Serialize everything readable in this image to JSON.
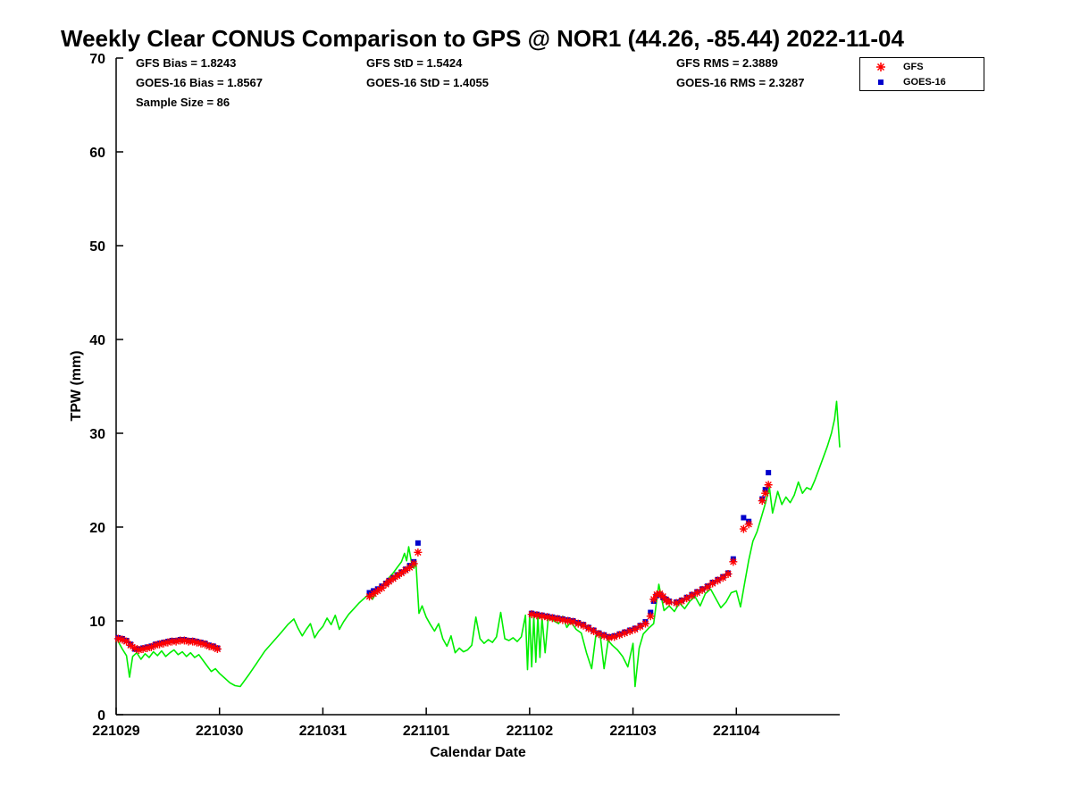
{
  "title": "Weekly Clear CONUS Comparison to GPS @ NOR1 (44.26, -85.44) 2022-11-04",
  "stats": {
    "col1": [
      "GFS Bias = 1.8243",
      "GOES-16 Bias = 1.8567",
      "Sample Size = 86"
    ],
    "col2": [
      "GFS StD = 1.5424",
      "GOES-16 StD = 1.4055"
    ],
    "col3": [
      "GFS RMS = 2.3889",
      "GOES-16 RMS = 2.3287"
    ]
  },
  "legend": {
    "items": [
      {
        "label": "GFS",
        "marker": "asterisk",
        "color": "#ff0000"
      },
      {
        "label": "GOES-16",
        "marker": "square",
        "color": "#0000cc"
      }
    ]
  },
  "chart_data": {
    "type": "line",
    "title": "Weekly Clear CONUS Comparison to GPS @ NOR1 (44.26, -85.44) 2022-11-04",
    "xlabel": "Calendar Date",
    "ylabel": "TPW (mm)",
    "xlim": [
      0,
      7
    ],
    "ylim": [
      0,
      70
    ],
    "grid": false,
    "legend_position": "top-right",
    "xticks": {
      "values": [
        0,
        1,
        2,
        3,
        4,
        5,
        6
      ],
      "labels": [
        "221029",
        "221030",
        "221031",
        "221101",
        "221102",
        "221103",
        "221104"
      ]
    },
    "yticks": [
      0,
      10,
      20,
      30,
      40,
      50,
      60,
      70
    ],
    "series": [
      {
        "name": "GPS",
        "type": "line",
        "color": "#00ee00",
        "x": [
          0.0,
          0.03,
          0.06,
          0.1,
          0.13,
          0.16,
          0.2,
          0.24,
          0.28,
          0.32,
          0.36,
          0.4,
          0.44,
          0.48,
          0.52,
          0.56,
          0.6,
          0.64,
          0.68,
          0.72,
          0.76,
          0.8,
          0.84,
          0.88,
          0.92,
          0.96,
          1.0,
          1.05,
          1.1,
          1.15,
          1.2,
          1.28,
          1.36,
          1.44,
          1.52,
          1.6,
          1.66,
          1.72,
          1.76,
          1.8,
          1.84,
          1.88,
          1.92,
          1.96,
          2.0,
          2.04,
          2.08,
          2.12,
          2.16,
          2.2,
          2.25,
          2.3,
          2.35,
          2.4,
          2.45,
          2.48,
          2.52,
          2.56,
          2.6,
          2.64,
          2.68,
          2.72,
          2.76,
          2.79,
          2.81,
          2.83,
          2.86,
          2.88,
          2.9,
          2.93,
          2.96,
          3.0,
          3.04,
          3.08,
          3.12,
          3.16,
          3.2,
          3.24,
          3.28,
          3.32,
          3.36,
          3.4,
          3.44,
          3.48,
          3.52,
          3.56,
          3.6,
          3.64,
          3.68,
          3.72,
          3.76,
          3.8,
          3.84,
          3.88,
          3.92,
          3.96,
          3.98,
          4.0,
          4.02,
          4.04,
          4.06,
          4.08,
          4.1,
          4.12,
          4.15,
          4.18,
          4.22,
          4.28,
          4.32,
          4.36,
          4.4,
          4.45,
          4.5,
          4.55,
          4.6,
          4.64,
          4.68,
          4.72,
          4.76,
          4.8,
          4.85,
          4.9,
          4.95,
          5.0,
          5.02,
          5.06,
          5.1,
          5.15,
          5.2,
          5.25,
          5.3,
          5.35,
          5.4,
          5.45,
          5.5,
          5.55,
          5.6,
          5.65,
          5.7,
          5.75,
          5.8,
          5.85,
          5.9,
          5.95,
          6.0,
          6.04,
          6.08,
          6.12,
          6.16,
          6.2,
          6.24,
          6.28,
          6.32,
          6.35,
          6.4,
          6.44,
          6.48,
          6.52,
          6.56,
          6.6,
          6.64,
          6.68,
          6.72,
          6.76,
          6.8,
          6.84,
          6.88,
          6.92,
          6.95,
          6.97,
          7.0
        ],
        "y": [
          8.2,
          7.6,
          7.0,
          6.3,
          4.0,
          6.2,
          6.6,
          5.9,
          6.5,
          6.1,
          6.7,
          6.3,
          6.8,
          6.2,
          6.6,
          6.9,
          6.4,
          6.7,
          6.2,
          6.6,
          6.1,
          6.4,
          5.8,
          5.2,
          4.6,
          4.9,
          4.4,
          3.9,
          3.4,
          3.1,
          3.0,
          4.2,
          5.5,
          6.8,
          7.8,
          8.8,
          9.6,
          10.2,
          9.2,
          8.4,
          9.1,
          9.7,
          8.2,
          8.9,
          9.4,
          10.3,
          9.6,
          10.6,
          9.1,
          9.9,
          10.7,
          11.3,
          11.9,
          12.4,
          12.9,
          12.3,
          13.1,
          13.6,
          14.1,
          14.6,
          15.1,
          15.7,
          16.3,
          17.2,
          16.4,
          17.9,
          16.1,
          15.6,
          16.2,
          10.8,
          11.6,
          10.4,
          9.6,
          8.9,
          9.7,
          8.1,
          7.3,
          8.4,
          6.6,
          7.1,
          6.7,
          6.9,
          7.4,
          10.4,
          8.1,
          7.6,
          8.0,
          7.7,
          8.3,
          10.9,
          8.1,
          7.9,
          8.2,
          7.8,
          8.3,
          10.6,
          4.8,
          10.7,
          5.1,
          10.5,
          5.6,
          10.6,
          6.1,
          10.4,
          6.6,
          10.3,
          10.1,
          9.7,
          10.5,
          9.3,
          9.9,
          9.1,
          8.7,
          6.6,
          4.9,
          8.4,
          8.8,
          4.9,
          7.9,
          7.4,
          6.9,
          6.2,
          5.1,
          7.6,
          3.0,
          7.1,
          8.6,
          9.2,
          9.7,
          13.9,
          11.1,
          11.6,
          11.0,
          11.9,
          11.3,
          12.1,
          12.6,
          11.6,
          12.9,
          13.4,
          12.4,
          11.4,
          12.0,
          13.0,
          13.2,
          11.5,
          14.0,
          16.5,
          18.5,
          19.5,
          21.0,
          22.5,
          24.2,
          21.5,
          23.8,
          22.4,
          23.2,
          22.6,
          23.4,
          24.8,
          23.6,
          24.2,
          24.0,
          25.0,
          26.2,
          27.4,
          28.6,
          30.0,
          31.5,
          33.4,
          28.5
        ]
      },
      {
        "name": "GFS",
        "type": "scatter",
        "marker": "asterisk",
        "color": "#ff0000",
        "x": [
          0.02,
          0.06,
          0.1,
          0.14,
          0.18,
          0.22,
          0.26,
          0.3,
          0.34,
          0.38,
          0.42,
          0.46,
          0.5,
          0.54,
          0.58,
          0.62,
          0.66,
          0.7,
          0.74,
          0.78,
          0.82,
          0.86,
          0.9,
          0.94,
          0.98,
          2.45,
          2.49,
          2.53,
          2.57,
          2.61,
          2.64,
          2.68,
          2.72,
          2.76,
          2.8,
          2.84,
          2.88,
          2.92,
          4.02,
          4.07,
          4.12,
          4.17,
          4.22,
          4.27,
          4.32,
          4.37,
          4.42,
          4.47,
          4.52,
          4.57,
          4.62,
          4.67,
          4.72,
          4.77,
          4.82,
          4.87,
          4.92,
          4.97,
          5.02,
          5.07,
          5.12,
          5.17,
          5.2,
          5.23,
          5.26,
          5.29,
          5.32,
          5.35,
          5.42,
          5.47,
          5.52,
          5.57,
          5.62,
          5.67,
          5.72,
          5.77,
          5.82,
          5.87,
          5.92,
          5.97,
          6.07,
          6.12,
          6.25,
          6.28,
          6.31
        ],
        "y": [
          8.1,
          8.0,
          7.8,
          7.4,
          7.1,
          6.9,
          7.0,
          7.1,
          7.2,
          7.4,
          7.5,
          7.6,
          7.7,
          7.8,
          7.8,
          7.9,
          7.9,
          7.8,
          7.8,
          7.7,
          7.6,
          7.5,
          7.3,
          7.2,
          7.0,
          12.6,
          12.9,
          13.2,
          13.5,
          13.9,
          14.2,
          14.5,
          14.8,
          15.1,
          15.4,
          15.7,
          16.1,
          17.3,
          10.7,
          10.6,
          10.5,
          10.4,
          10.3,
          10.2,
          10.1,
          10.0,
          9.9,
          9.7,
          9.5,
          9.2,
          8.9,
          8.6,
          8.4,
          8.2,
          8.3,
          8.5,
          8.7,
          8.9,
          9.1,
          9.4,
          9.7,
          10.5,
          12.3,
          12.8,
          12.9,
          12.6,
          12.2,
          12.0,
          11.9,
          12.1,
          12.4,
          12.7,
          13.0,
          13.3,
          13.6,
          14.0,
          14.3,
          14.6,
          15.0,
          16.3,
          19.8,
          20.3,
          22.8,
          23.6,
          24.5
        ]
      },
      {
        "name": "GOES-16",
        "type": "scatter",
        "marker": "square",
        "color": "#0000cc",
        "x": [
          0.02,
          0.06,
          0.1,
          0.14,
          0.18,
          0.22,
          0.26,
          0.3,
          0.34,
          0.38,
          0.42,
          0.46,
          0.5,
          0.54,
          0.58,
          0.62,
          0.66,
          0.7,
          0.74,
          0.78,
          0.82,
          0.86,
          0.9,
          0.94,
          0.98,
          2.45,
          2.49,
          2.53,
          2.57,
          2.61,
          2.64,
          2.68,
          2.72,
          2.76,
          2.8,
          2.84,
          2.88,
          2.92,
          4.02,
          4.07,
          4.12,
          4.17,
          4.22,
          4.27,
          4.32,
          4.37,
          4.42,
          4.47,
          4.52,
          4.57,
          4.62,
          4.67,
          4.72,
          4.77,
          4.82,
          4.87,
          4.92,
          4.97,
          5.02,
          5.07,
          5.12,
          5.17,
          5.2,
          5.23,
          5.26,
          5.29,
          5.32,
          5.35,
          5.42,
          5.47,
          5.52,
          5.57,
          5.62,
          5.67,
          5.72,
          5.77,
          5.82,
          5.87,
          5.92,
          5.97,
          6.07,
          6.12,
          6.25,
          6.28,
          6.31
        ],
        "y": [
          8.2,
          8.1,
          7.9,
          7.5,
          7.0,
          7.0,
          7.1,
          7.2,
          7.3,
          7.5,
          7.6,
          7.7,
          7.8,
          7.9,
          7.9,
          8.0,
          8.0,
          7.9,
          7.9,
          7.8,
          7.7,
          7.6,
          7.4,
          7.3,
          7.1,
          13.0,
          13.2,
          13.4,
          13.7,
          14.0,
          14.3,
          14.6,
          14.9,
          15.2,
          15.5,
          15.9,
          16.3,
          18.3,
          10.8,
          10.7,
          10.6,
          10.5,
          10.4,
          10.3,
          10.2,
          10.1,
          10.0,
          9.8,
          9.6,
          9.3,
          9.0,
          8.7,
          8.5,
          8.3,
          8.4,
          8.6,
          8.8,
          9.0,
          9.2,
          9.5,
          9.9,
          10.9,
          12.1,
          12.7,
          12.8,
          12.5,
          12.3,
          12.1,
          12.0,
          12.2,
          12.5,
          12.8,
          13.1,
          13.4,
          13.7,
          14.1,
          14.4,
          14.7,
          15.1,
          16.6,
          21.0,
          20.6,
          23.0,
          24.0,
          25.8
        ]
      }
    ]
  }
}
